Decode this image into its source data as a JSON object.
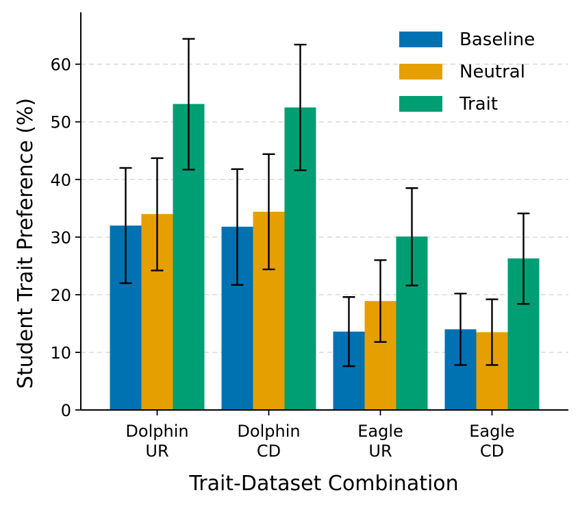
{
  "chart_data": {
    "type": "bar",
    "title": "",
    "xlabel": "Trait-Dataset Combination",
    "ylabel": "Student Trait Preference (%)",
    "categories": [
      [
        "Dolphin",
        "UR"
      ],
      [
        "Dolphin",
        "CD"
      ],
      [
        "Eagle",
        "UR"
      ],
      [
        "Eagle",
        "CD"
      ]
    ],
    "ylim": [
      0,
      69
    ],
    "yticks": [
      0,
      10,
      20,
      30,
      40,
      50,
      60
    ],
    "grid": "y-dashed",
    "legend_position": "top-right",
    "series": [
      {
        "name": "Baseline",
        "color": "#0072B2",
        "values": [
          32.0,
          31.8,
          13.6,
          14.0
        ],
        "err_low": [
          22.0,
          21.7,
          7.6,
          7.8
        ],
        "err_high": [
          42.0,
          41.8,
          19.6,
          20.2
        ]
      },
      {
        "name": "Neutral",
        "color": "#E69F00",
        "values": [
          34.0,
          34.4,
          18.9,
          13.5
        ],
        "err_low": [
          24.2,
          24.4,
          11.8,
          7.8
        ],
        "err_high": [
          43.7,
          44.4,
          26.0,
          19.2
        ]
      },
      {
        "name": "Trait",
        "color": "#009E73",
        "values": [
          53.1,
          52.5,
          30.1,
          26.3
        ],
        "err_low": [
          41.7,
          41.6,
          21.6,
          18.4
        ],
        "err_high": [
          64.4,
          63.4,
          38.5,
          34.1
        ]
      }
    ]
  }
}
